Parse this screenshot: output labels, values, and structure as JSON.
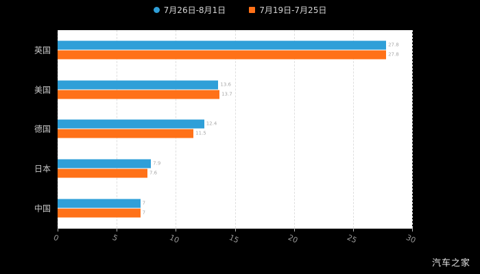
{
  "legend": {
    "items": [
      {
        "label": "7月26日-8月1日",
        "color": "#2f9fd8",
        "shape": "circle"
      },
      {
        "label": "7月19日-7月25日",
        "color": "#ff7118",
        "shape": "square"
      }
    ]
  },
  "watermark": "汽车之家",
  "chart_data": {
    "type": "bar",
    "orientation": "horizontal",
    "title": "",
    "categories": [
      "英国",
      "美国",
      "德国",
      "日本",
      "中国"
    ],
    "series": [
      {
        "name": "7月26日-8月1日",
        "color": "#2f9fd8",
        "values": [
          27.8,
          13.6,
          12.4,
          7.9,
          7.0
        ]
      },
      {
        "name": "7月19日-7月25日",
        "color": "#ff7118",
        "values": [
          27.8,
          13.7,
          11.5,
          7.6,
          7.0
        ]
      }
    ],
    "xlim": [
      0,
      30
    ],
    "xticks": [
      0,
      5,
      10,
      15,
      20,
      25,
      30
    ],
    "grid": true,
    "legend_position": "top",
    "plot_background": "#ffffff",
    "page_background": "#000000"
  }
}
